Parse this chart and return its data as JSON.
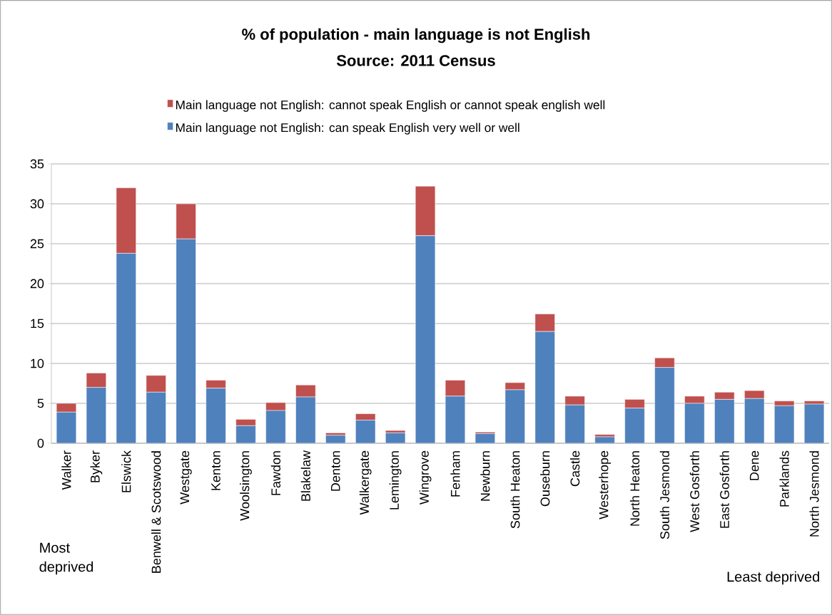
{
  "chart_data": {
    "type": "bar",
    "stacked": true,
    "title": "% of population - main language is not English",
    "subtitle": "Source: 2011 Census",
    "categories": [
      "Walker",
      "Byker",
      "Elswick",
      "Benwell & Scotswood",
      "Westgate",
      "Kenton",
      "Woolsington",
      "Fawdon",
      "Blakelaw",
      "Denton",
      "Walkergate",
      "Lemington",
      "Wingrove",
      "Fenham",
      "Newburn",
      "South Heaton",
      "Ouseburn",
      "Castle",
      "Westerhope",
      "North Heaton",
      "South Jesmond",
      "West Gosforth",
      "East Gosforth",
      "Dene",
      "Parklands",
      "North Jesmond"
    ],
    "series": [
      {
        "name": "Main language not English: can speak English very well or well",
        "color": "#4f81bd",
        "values": [
          3.9,
          7.0,
          23.8,
          6.4,
          25.6,
          6.9,
          2.2,
          4.1,
          5.8,
          1.0,
          2.9,
          1.3,
          26.0,
          5.9,
          1.2,
          6.7,
          14.0,
          4.8,
          0.8,
          4.4,
          9.5,
          5.0,
          5.5,
          5.6,
          4.7,
          4.9
        ]
      },
      {
        "name": "Main language not English: cannot speak English  or cannot speak english well",
        "color": "#c0504d",
        "values": [
          1.1,
          1.8,
          8.2,
          2.1,
          4.4,
          1.0,
          0.8,
          1.0,
          1.5,
          0.3,
          0.8,
          0.3,
          6.2,
          2.0,
          0.2,
          0.9,
          2.2,
          1.1,
          0.3,
          1.1,
          1.2,
          0.9,
          0.9,
          1.0,
          0.6,
          0.4
        ]
      }
    ],
    "ylim": [
      0,
      35
    ],
    "yticks": [
      0,
      5,
      10,
      15,
      20,
      25,
      30,
      35
    ],
    "grid": "y",
    "legend": "top",
    "annotations": [
      "Most deprived",
      "Least deprived"
    ]
  }
}
